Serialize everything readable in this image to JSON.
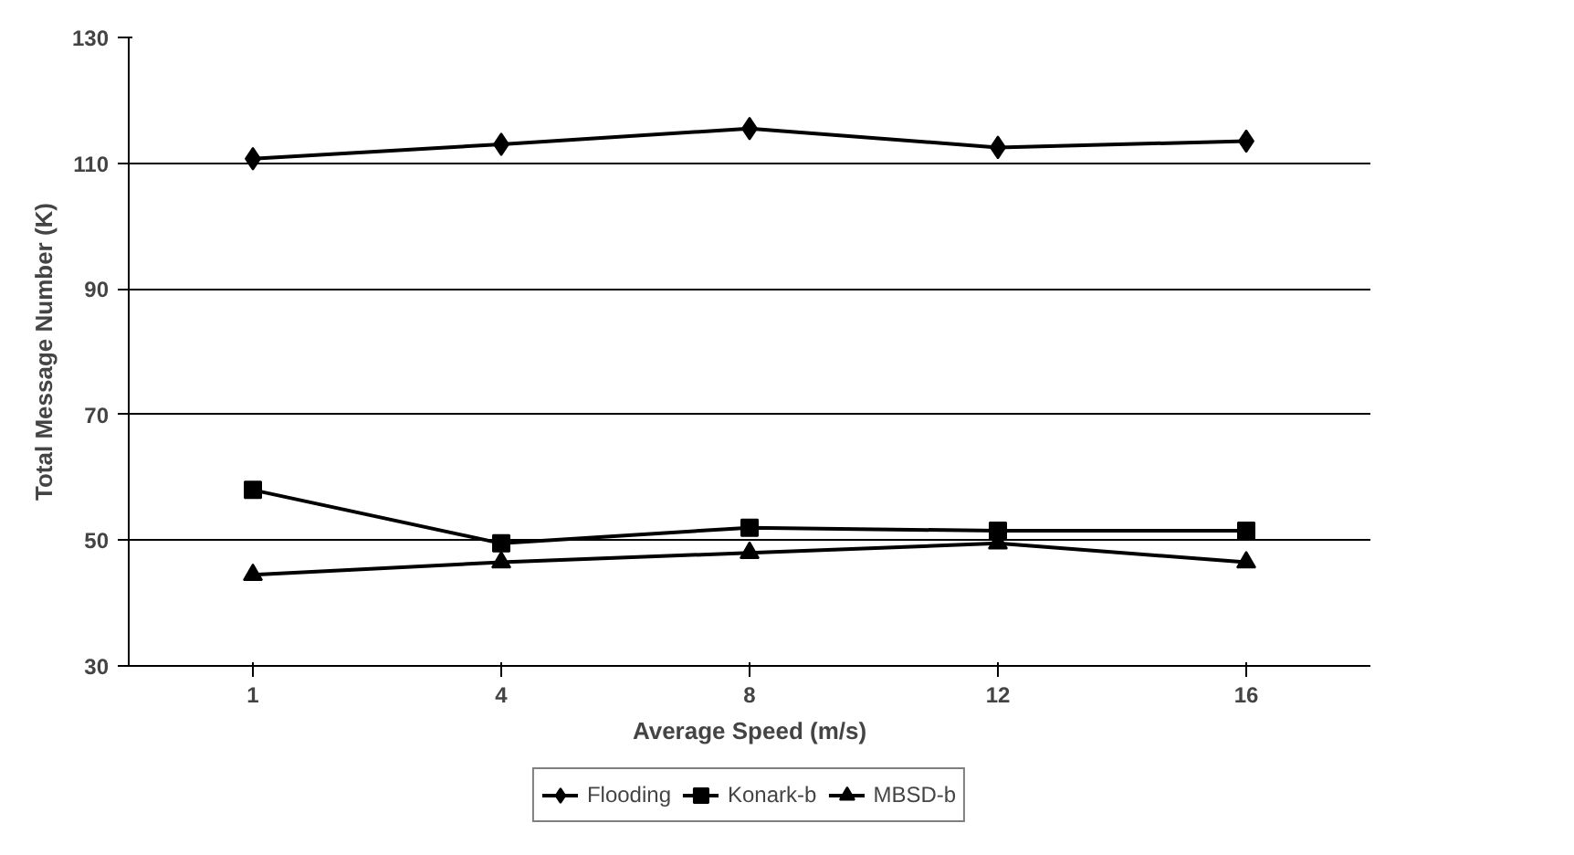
{
  "chart_data": {
    "type": "line",
    "xlabel": "Average Speed (m/s)",
    "ylabel": "Total Message Number (K)",
    "categories": [
      "1",
      "4",
      "8",
      "12",
      "16"
    ],
    "series": [
      {
        "name": "Flooding",
        "color": "#000000",
        "marker": "diamond",
        "values": [
          110.7,
          113,
          115.5,
          112.5,
          113.5
        ]
      },
      {
        "name": "Konark-b",
        "color": "#000000",
        "marker": "square",
        "values": [
          58,
          49.5,
          52,
          51.5,
          51.5
        ]
      },
      {
        "name": "MBSD-b",
        "color": "#000000",
        "marker": "triangle",
        "values": [
          44.5,
          46.5,
          48,
          49.5,
          46.5
        ]
      }
    ],
    "ylim": [
      30,
      130
    ],
    "yticks": [
      30,
      50,
      70,
      90,
      110,
      130
    ],
    "grid": "y",
    "legend": "bottom"
  }
}
